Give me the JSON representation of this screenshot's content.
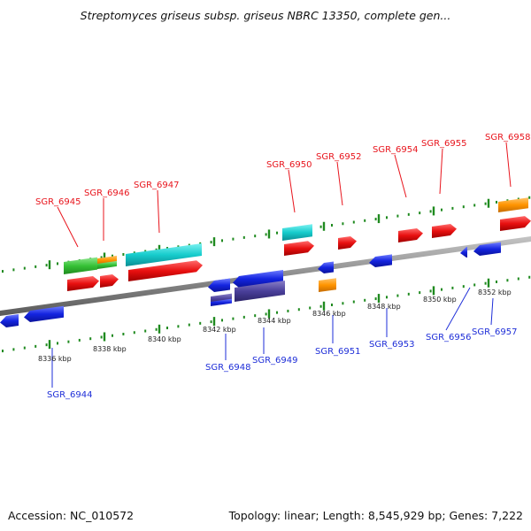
{
  "title": "Streptomyces griseus subsp. griseus NBRC 13350, complete gen...",
  "footer": {
    "accession": "Accession: NC_010572",
    "summary": "Topology: linear; Length: 8,545,929 bp; Genes: 7,222"
  },
  "colors": {
    "forward_label": "#e8141c",
    "reverse_label": "#1e2ed8",
    "scale_dots": "#1f8a1f",
    "axis": "#7a7a7a"
  },
  "scale_labels": [
    "8336 kbp",
    "8338 kbp",
    "8340 kbp",
    "8342 kbp",
    "8344 kbp",
    "8346 kbp",
    "8348 kbp",
    "8350 kbp",
    "8352 kbp"
  ],
  "genes_forward": [
    "SGR_6945",
    "SGR_6946",
    "SGR_6947",
    "SGR_6950",
    "SGR_6952",
    "SGR_6954",
    "SGR_6955",
    "SGR_6958"
  ],
  "genes_reverse": [
    "SGR_6944",
    "SGR_6948",
    "SGR_6949",
    "SGR_6951",
    "SGR_6953",
    "SGR_6956",
    "SGR_6957"
  ]
}
